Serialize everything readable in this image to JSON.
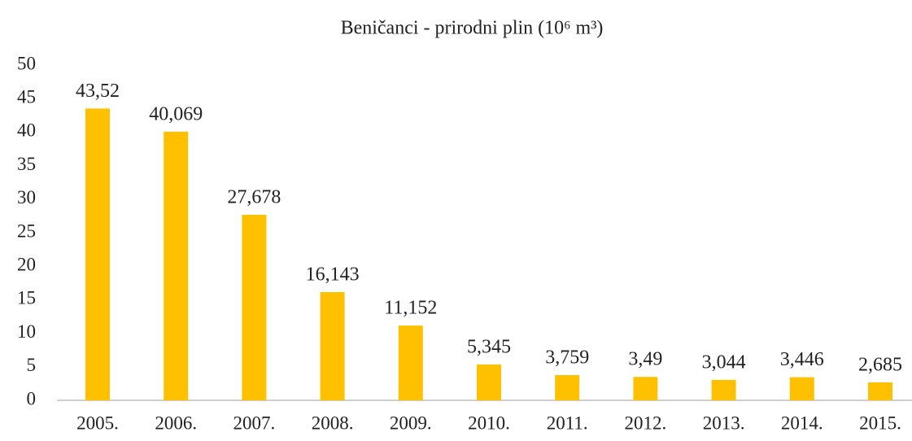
{
  "chart_data": {
    "type": "bar",
    "title": "Beničanci - prirodni plin (10⁶ m³)",
    "categories": [
      "2005.",
      "2006.",
      "2007.",
      "2008.",
      "2009.",
      "2010.",
      "2011.",
      "2012.",
      "2013.",
      "2014.",
      "2015."
    ],
    "values": [
      43.52,
      40.069,
      27.678,
      16.143,
      11.152,
      5.345,
      3.759,
      3.49,
      3.044,
      3.446,
      2.685
    ],
    "value_labels": [
      "43,52",
      "40,069",
      "27,678",
      "16,143",
      "11,152",
      "5,345",
      "3,759",
      "3,49",
      "3,044",
      "3,446",
      "2,685"
    ],
    "color": "#ffc000",
    "ylim": [
      0,
      50
    ],
    "yticks": [
      0,
      5,
      10,
      15,
      20,
      25,
      30,
      35,
      40,
      45,
      50
    ],
    "grid": false
  }
}
